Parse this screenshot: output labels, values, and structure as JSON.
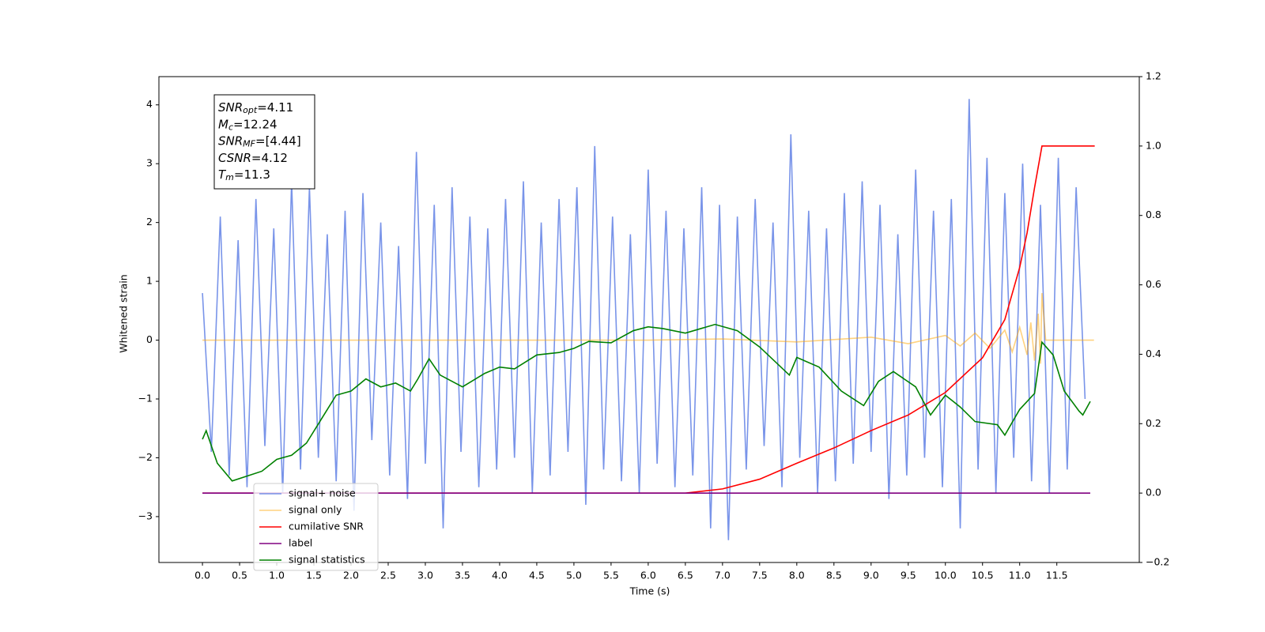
{
  "chart_data": {
    "type": "line",
    "xlabel": "Time (s)",
    "ylabel": "Whitened strain",
    "xlim": [
      -0.586,
      12.61
    ],
    "ylim": [
      -3.78,
      4.48
    ],
    "y2lim": [
      -0.2,
      1.2
    ],
    "xticks": [
      {
        "value": 0,
        "label": "0.0"
      },
      0.5,
      {
        "value": 1,
        "label": "1.0"
      },
      1.5,
      {
        "value": 2,
        "label": "2.0"
      },
      2.5,
      {
        "value": 3,
        "label": "3.0"
      },
      3.5,
      {
        "value": 4,
        "label": "4.0"
      },
      4.5,
      {
        "value": 5,
        "label": "5.0"
      },
      5.5,
      {
        "value": 6,
        "label": "6.0"
      },
      6.5,
      {
        "value": 7,
        "label": "7.0"
      },
      7.5,
      {
        "value": 8,
        "label": "8.0"
      },
      8.5,
      {
        "value": 9,
        "label": "9.0"
      },
      9.5,
      {
        "value": 10,
        "label": "10.0"
      },
      10.5,
      {
        "value": 11,
        "label": "11.0"
      },
      11.5
    ],
    "yticks": [
      {
        "value": -3,
        "label": "−3"
      },
      {
        "value": -2,
        "label": "−2"
      },
      {
        "value": -1,
        "label": "−1"
      },
      0,
      1,
      2,
      3,
      4
    ],
    "y2ticks": [
      {
        "value": -0.2,
        "label": "−0.2"
      },
      {
        "value": 0,
        "label": "0.0"
      },
      0.2,
      0.4,
      0.6,
      0.8,
      {
        "value": 1,
        "label": "1.0"
      },
      1.2
    ],
    "annotations": [
      {
        "base": "SNR",
        "sub": "opt",
        "text": "=4.11"
      },
      {
        "base": "M",
        "sub": "c",
        "text": "=12.24"
      },
      {
        "base": "SNR",
        "sub": "MF",
        "text": "=[4.44]"
      },
      {
        "base": "CSNR",
        "text": "=4.12"
      },
      {
        "base": "T",
        "sub": "m",
        "text": "=11.3"
      }
    ],
    "legend": "lower left",
    "series": [
      {
        "name": "signal+ noise",
        "color": "#6685e6",
        "alpha": 0.88,
        "x": [
          0,
          0.12,
          0.24,
          0.36,
          0.48,
          0.6,
          0.72,
          0.84,
          0.96,
          1.08,
          1.2,
          1.32,
          1.44,
          1.56,
          1.68,
          1.8,
          1.92,
          2.04,
          2.16,
          2.28,
          2.4,
          2.52,
          2.64,
          2.76,
          2.88,
          3,
          3.12,
          3.24,
          3.36,
          3.48,
          3.6,
          3.72,
          3.84,
          3.96,
          4.08,
          4.2,
          4.32,
          4.44,
          4.56,
          4.68,
          4.8,
          4.92,
          5.04,
          5.16,
          5.28,
          5.4,
          5.52,
          5.64,
          5.76,
          5.88,
          6,
          6.12,
          6.24,
          6.36,
          6.48,
          6.6,
          6.72,
          6.84,
          6.96,
          7.08,
          7.2,
          7.32,
          7.44,
          7.56,
          7.68,
          7.8,
          7.92,
          8.04,
          8.16,
          8.28,
          8.4,
          8.52,
          8.64,
          8.76,
          8.88,
          9,
          9.12,
          9.24,
          9.36,
          9.48,
          9.6,
          9.72,
          9.84,
          9.96,
          10.08,
          10.2,
          10.32,
          10.44,
          10.56,
          10.68,
          10.8,
          10.92,
          11.04,
          11.16,
          11.28,
          11.4,
          11.52,
          11.64,
          11.76,
          11.88
        ],
        "values": [
          0.8,
          -1.9,
          2.1,
          -2.3,
          1.7,
          -2.5,
          2.4,
          -1.8,
          1.9,
          -2.6,
          2.7,
          -2.2,
          2.6,
          -2.0,
          1.8,
          -2.4,
          2.2,
          -2.9,
          2.5,
          -1.7,
          2.0,
          -2.3,
          1.6,
          -2.7,
          3.2,
          -2.1,
          2.3,
          -3.2,
          2.6,
          -1.9,
          2.1,
          -2.5,
          1.9,
          -2.2,
          2.4,
          -2.0,
          2.7,
          -2.6,
          2.0,
          -2.3,
          2.4,
          -1.9,
          2.6,
          -2.8,
          3.3,
          -2.2,
          2.1,
          -2.4,
          1.8,
          -2.6,
          2.9,
          -2.1,
          2.2,
          -2.5,
          1.9,
          -2.3,
          2.6,
          -3.2,
          2.3,
          -3.4,
          2.1,
          -2.2,
          2.4,
          -1.8,
          2.0,
          -2.5,
          3.5,
          -2.0,
          2.2,
          -2.6,
          1.9,
          -2.4,
          2.5,
          -2.1,
          2.7,
          -1.9,
          2.3,
          -2.7,
          1.8,
          -2.3,
          2.9,
          -2.0,
          2.2,
          -2.5,
          2.4,
          -3.2,
          4.1,
          -2.2,
          3.1,
          -2.6,
          2.5,
          -2.0,
          3.0,
          -2.4,
          2.3,
          -2.6,
          3.1,
          -2.2,
          2.6,
          -1.0
        ]
      },
      {
        "name": "signal only",
        "color": "#ffa500",
        "alpha": 0.5,
        "x": [
          0,
          6,
          7,
          8,
          9,
          9.5,
          10,
          10.2,
          10.4,
          10.6,
          10.8,
          10.9,
          11.0,
          11.1,
          11.15,
          11.2,
          11.25,
          11.28,
          11.3,
          11.35,
          12
        ],
        "values": [
          0,
          0,
          0.02,
          -0.03,
          0.05,
          -0.06,
          0.08,
          -0.1,
          0.12,
          -0.14,
          0.17,
          -0.2,
          0.22,
          -0.25,
          0.3,
          -0.35,
          0.45,
          -0.4,
          0.8,
          0,
          0
        ]
      },
      {
        "name": "cumilative SNR",
        "color": "#ff0000",
        "axis": "y2",
        "x": [
          0,
          6.5,
          7.0,
          7.5,
          8.0,
          8.5,
          9.0,
          9.5,
          10.0,
          10.5,
          10.8,
          11.0,
          11.1,
          11.2,
          11.3,
          12.01
        ],
        "values": [
          0,
          0,
          0.012,
          0.04,
          0.086,
          0.13,
          0.18,
          0.225,
          0.29,
          0.39,
          0.5,
          0.65,
          0.75,
          0.88,
          1,
          1
        ]
      },
      {
        "name": "label",
        "color": "#800080",
        "axis": "y2",
        "x": [
          0,
          11.95
        ],
        "values": [
          0,
          0
        ]
      },
      {
        "name": "signal statistics",
        "color": "#008000",
        "axis": "y2",
        "x": [
          0,
          0.05,
          0.2,
          0.4,
          0.6,
          0.8,
          1.0,
          1.2,
          1.4,
          1.6,
          1.8,
          2.0,
          2.2,
          2.4,
          2.6,
          2.8,
          2.9,
          3.05,
          3.2,
          3.5,
          3.8,
          4.0,
          4.2,
          4.5,
          4.8,
          5.0,
          5.2,
          5.5,
          5.8,
          6.0,
          6.2,
          6.5,
          6.9,
          7.2,
          7.5,
          7.9,
          8.0,
          8.3,
          8.6,
          8.9,
          9.1,
          9.3,
          9.6,
          9.8,
          10.0,
          10.2,
          10.4,
          10.7,
          10.8,
          11.0,
          11.2,
          11.3,
          11.45,
          11.6,
          11.8,
          11.85,
          11.95
        ],
        "values": [
          0.155,
          0.18,
          0.086,
          0.035,
          0.049,
          0.063,
          0.097,
          0.109,
          0.144,
          0.213,
          0.282,
          0.294,
          0.329,
          0.306,
          0.317,
          0.294,
          0.329,
          0.387,
          0.34,
          0.306,
          0.345,
          0.363,
          0.358,
          0.398,
          0.405,
          0.417,
          0.437,
          0.433,
          0.468,
          0.479,
          0.474,
          0.461,
          0.486,
          0.468,
          0.421,
          0.34,
          0.391,
          0.363,
          0.294,
          0.252,
          0.322,
          0.35,
          0.306,
          0.225,
          0.282,
          0.248,
          0.206,
          0.197,
          0.167,
          0.241,
          0.287,
          0.435,
          0.398,
          0.294,
          0.236,
          0.225,
          0.264
        ]
      }
    ]
  }
}
